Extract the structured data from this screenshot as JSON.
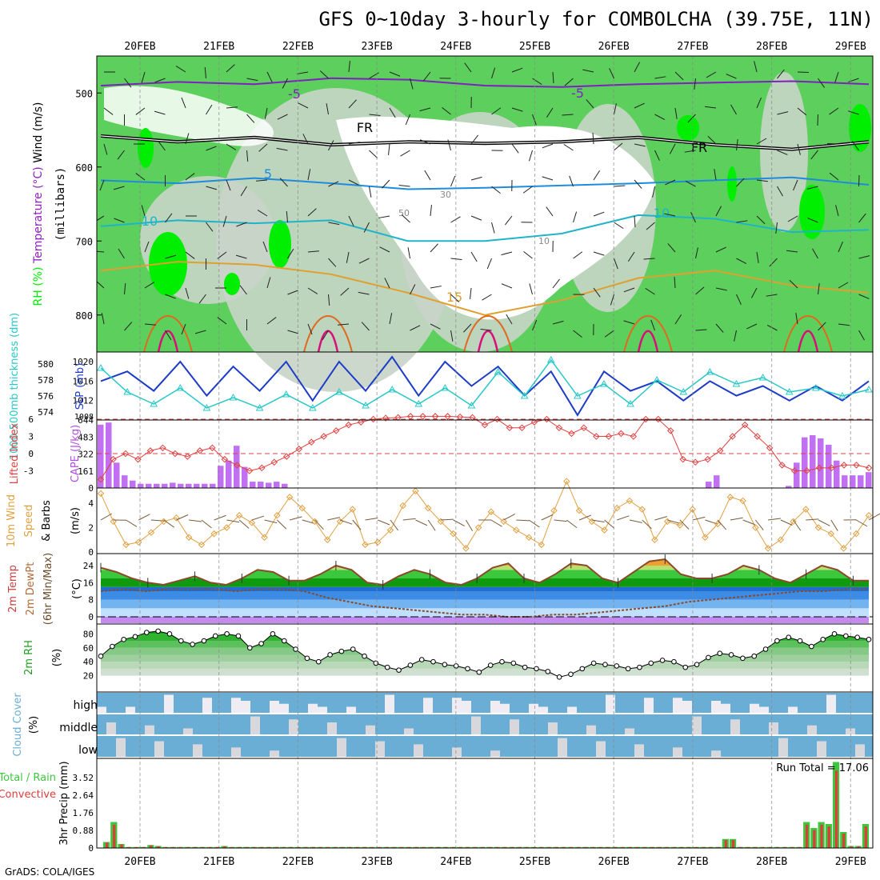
{
  "header": {
    "title": "GFS 0~10day 3-hourly for COMBOLCHA (39.75E, 11N)",
    "credit": "GrADS: COLA/IGES",
    "run_total_label": "Run Total = 17.06"
  },
  "date_axis": {
    "labels": [
      "20FEB",
      "21FEB",
      "22FEB",
      "23FEB",
      "24FEB",
      "25FEB",
      "26FEB",
      "27FEB",
      "28FEB",
      "29FEB"
    ]
  },
  "colors": {
    "rh_green": "#5ccf5c",
    "rh_bright": "#00ee00",
    "rh_gray": "#c8d4c8",
    "slp_line": "#1e3cc8",
    "thickness_line": "#28c8c8",
    "lifted_index": "#e04040",
    "cape_bar": "#c070f0",
    "wind_speed": "#e0a040",
    "temp_fill": "#28b428",
    "dewpoint": "#8b4a2b",
    "cloud_fill": "#6aaed6",
    "rain_total": "#3cc83c",
    "rain_convective": "#e03c3c"
  },
  "chart_data": [
    {
      "type": "heatmap",
      "panel": "Upper air cross-section",
      "ylabel": "(millibars)",
      "labels_left": [
        "RH (%)",
        "Temperature (°C)",
        "Wind (m/s)"
      ],
      "ylim": [
        850,
        450
      ],
      "yticks": [
        500,
        600,
        700,
        800
      ],
      "contour_labels": [
        "-5",
        "-5",
        "FR",
        "FR",
        "5",
        "10",
        "10",
        "15",
        "30",
        "50",
        "10"
      ],
      "isotherms": [
        {
          "name": "-5",
          "pressure_mb": [
            490,
            485,
            488,
            480,
            482,
            490,
            492,
            488,
            486,
            484,
            488
          ]
        },
        {
          "name": "FR",
          "pressure_mb": [
            558,
            566,
            560,
            570,
            566,
            568,
            566,
            560,
            570,
            576,
            566
          ]
        },
        {
          "name": "5",
          "pressure_mb": [
            618,
            622,
            615,
            622,
            630,
            628,
            625,
            622,
            618,
            614,
            624
          ]
        },
        {
          "name": "10",
          "pressure_mb": [
            680,
            672,
            676,
            672,
            700,
            700,
            690,
            665,
            670,
            688,
            685
          ]
        },
        {
          "name": "15",
          "pressure_mb": [
            740,
            728,
            732,
            745,
            770,
            800,
            780,
            750,
            740,
            760,
            770
          ]
        }
      ]
    },
    {
      "type": "line",
      "panel": "SLP and thickness",
      "series": [
        {
          "name": "SLP (mb)",
          "yticks": [
            1012,
            1016,
            1020
          ],
          "values": [
            1016,
            1018,
            1014,
            1020,
            1013,
            1019,
            1014,
            1020,
            1012,
            1020,
            1014,
            1021,
            1013,
            1020,
            1015,
            1019,
            1013,
            1018,
            1009,
            1018,
            1014,
            1016,
            1012,
            1016,
            1013,
            1015,
            1012,
            1015,
            1012,
            1016
          ]
        },
        {
          "name": "1000-500mb thickness (dm)",
          "yticks": [
            574,
            576,
            578,
            580
          ],
          "values": [
            579.5,
            576.5,
            575,
            577,
            574.5,
            575.8,
            574.5,
            576.2,
            574.5,
            576.5,
            574.8,
            576.8,
            575,
            577,
            574.8,
            579,
            576,
            580.5,
            576,
            577.5,
            575,
            578,
            576.5,
            579,
            577.5,
            578.3,
            576.5,
            577,
            576,
            576.8
          ]
        }
      ],
      "bottom_label": "1008"
    },
    {
      "type": "bar",
      "panel": "CAPE and Lifted Index",
      "series": [
        {
          "name": "CAPE (J/kg)",
          "yticks": [
            161,
            322,
            483,
            644
          ],
          "values": [
            600,
            620,
            240,
            120,
            70,
            40,
            40,
            40,
            40,
            50,
            40,
            40,
            40,
            40,
            40,
            210,
            260,
            400,
            200,
            60,
            60,
            50,
            60,
            40,
            0,
            0,
            0,
            0,
            0,
            0,
            0,
            0,
            0,
            0,
            0,
            0,
            0,
            0,
            0,
            0,
            0,
            0,
            0,
            0,
            0,
            0,
            0,
            0,
            0,
            0,
            0,
            0,
            0,
            0,
            0,
            0,
            0,
            0,
            0,
            0,
            0,
            0,
            0,
            0,
            0,
            0,
            0,
            0,
            0,
            0,
            0,
            0,
            0,
            0,
            0,
            0,
            60,
            120,
            0,
            0,
            0,
            0,
            0,
            0,
            0,
            0,
            20,
            240,
            480,
            500,
            470,
            410,
            260,
            120,
            120,
            120,
            150
          ]
        },
        {
          "name": "Lifted Index",
          "yticks": [
            -3,
            0,
            3,
            6
          ],
          "values": [
            -4.5,
            -1,
            0,
            -1,
            0.5,
            1,
            0,
            -0.5,
            0.5,
            1,
            -1,
            -2,
            -3,
            -2.5,
            -1.5,
            -0.5,
            0.8,
            2,
            3,
            4,
            5,
            5.5,
            6,
            6.2,
            6.3,
            6.5,
            6.5,
            6.5,
            6.5,
            6.4,
            6.3,
            5,
            6,
            4.5,
            4.5,
            5.5,
            6,
            4.5,
            3.5,
            4.5,
            3,
            3,
            3.5,
            3,
            6,
            6,
            4,
            -1,
            -1.5,
            -1,
            0.5,
            3,
            5,
            3,
            1,
            -2,
            -3,
            -3,
            -2.5,
            -2.5,
            -2,
            -2,
            -2.5
          ]
        }
      ],
      "reference_lines": [
        0,
        6
      ]
    },
    {
      "type": "line",
      "panel": "10m Wind Speed & Barbs",
      "ylabel": "(m/s)",
      "yticks": [
        0,
        2,
        4
      ],
      "values": [
        4.8,
        2.5,
        0.6,
        0.8,
        1.6,
        2.5,
        2.8,
        1.2,
        0.6,
        1.5,
        2,
        3,
        2.4,
        1.2,
        3,
        4.5,
        3.6,
        2.5,
        1,
        2.5,
        3.5,
        0.6,
        0.8,
        1.8,
        3.8,
        5,
        3.6,
        2.5,
        1.5,
        0.3,
        2,
        3.3,
        2.5,
        1.8,
        1.2,
        0.6,
        3.4,
        5.8,
        3.4,
        2.5,
        1.8,
        3.6,
        4.2,
        3.5,
        1,
        2.5,
        2.2,
        3.5,
        1.2,
        2.3,
        4.5,
        4.2,
        2,
        0.3,
        1,
        2.5,
        3.5,
        2,
        1.5,
        0.3,
        1.5,
        3
      ]
    },
    {
      "type": "area",
      "panel": "2m Temp / DewPt",
      "labels_left": [
        "2m Temp",
        "2m DewPt",
        "(6hr Min/Max)"
      ],
      "ylabel": "(°C)",
      "yticks": [
        0,
        8,
        16,
        24
      ],
      "series": [
        {
          "name": "2m Temp",
          "values": [
            23,
            21,
            18,
            16,
            15,
            17,
            19,
            16,
            15,
            18,
            22,
            21,
            17,
            17,
            20,
            24,
            22,
            16,
            15,
            19,
            22,
            20,
            16,
            15,
            18,
            23,
            25,
            18,
            16,
            20,
            25,
            24,
            18,
            16,
            21,
            26,
            27,
            20,
            18,
            18,
            20,
            24,
            22,
            18,
            16,
            20,
            24,
            22,
            17,
            17
          ]
        },
        {
          "name": "2m DewPt",
          "values": [
            12,
            13,
            12,
            13,
            13,
            13,
            12,
            13,
            13,
            12,
            9,
            7,
            5,
            4,
            3,
            2,
            1,
            1,
            0,
            0,
            1,
            1,
            2,
            3,
            4,
            5,
            7,
            8,
            9,
            10,
            11,
            12,
            12,
            13,
            13
          ]
        }
      ]
    },
    {
      "type": "area",
      "panel": "2m RH",
      "ylabel": "(%)",
      "yticks": [
        20,
        40,
        60,
        80
      ],
      "values": [
        48,
        62,
        72,
        76,
        82,
        84,
        80,
        70,
        65,
        70,
        77,
        80,
        77,
        60,
        66,
        80,
        70,
        58,
        45,
        40,
        50,
        55,
        58,
        48,
        38,
        32,
        28,
        35,
        43,
        40,
        36,
        34,
        30,
        25,
        35,
        40,
        38,
        32,
        30,
        26,
        18,
        22,
        30,
        38,
        36,
        34,
        30,
        32,
        38,
        42,
        40,
        32,
        36,
        46,
        52,
        50,
        45,
        48,
        58,
        70,
        75,
        70,
        62,
        72,
        80,
        77,
        75,
        72
      ]
    },
    {
      "type": "bar",
      "panel": "Cloud Cover",
      "ylabel": "(%)",
      "categories": [
        "high",
        "middle",
        "low"
      ],
      "values": [
        60,
        95,
        80
      ]
    },
    {
      "type": "bar",
      "panel": "3hr Precip",
      "labels_left": [
        "Total / Rain",
        "Convective"
      ],
      "ylabel": "3hr Precip (mm)",
      "yticks": [
        0,
        0.88,
        1.76,
        2.64,
        3.52
      ],
      "series": [
        {
          "name": "Total",
          "values": [
            0.3,
            1.3,
            0.2,
            0.05,
            0.05,
            0.05,
            0.15,
            0.1,
            0.05,
            0.05,
            0.05,
            0.05,
            0.05,
            0.05,
            0.05,
            0.05,
            0.1,
            0.05,
            0.05,
            0.05,
            0.05,
            0.05,
            0.05,
            0.05,
            0.05,
            0.05,
            0.05,
            0.05,
            0.05,
            0.05,
            0.05,
            0.05,
            0.05,
            0.05,
            0.05,
            0.05,
            0.05,
            0.05,
            0.05,
            0.05,
            0.05,
            0.05,
            0.05,
            0.05,
            0.05,
            0.05,
            0.05,
            0.05,
            0.05,
            0.05,
            0.05,
            0.05,
            0.05,
            0.05,
            0.05,
            0.05,
            0.05,
            0.05,
            0.05,
            0.05,
            0.05,
            0.05,
            0.05,
            0.05,
            0.05,
            0.05,
            0.05,
            0.05,
            0.05,
            0.05,
            0.05,
            0.05,
            0.05,
            0.05,
            0.05,
            0.05,
            0.05,
            0.05,
            0.05,
            0.05,
            0.05,
            0.05,
            0.05,
            0.05,
            0.45,
            0.45,
            0.05,
            0.05,
            0.05,
            0.05,
            0.05,
            0.05,
            0.05,
            0.05,
            0.05,
            1.3,
            1.0,
            1.3,
            1.2,
            4.3,
            0.8,
            0.1,
            0.1,
            1.2
          ]
        }
      ]
    }
  ]
}
